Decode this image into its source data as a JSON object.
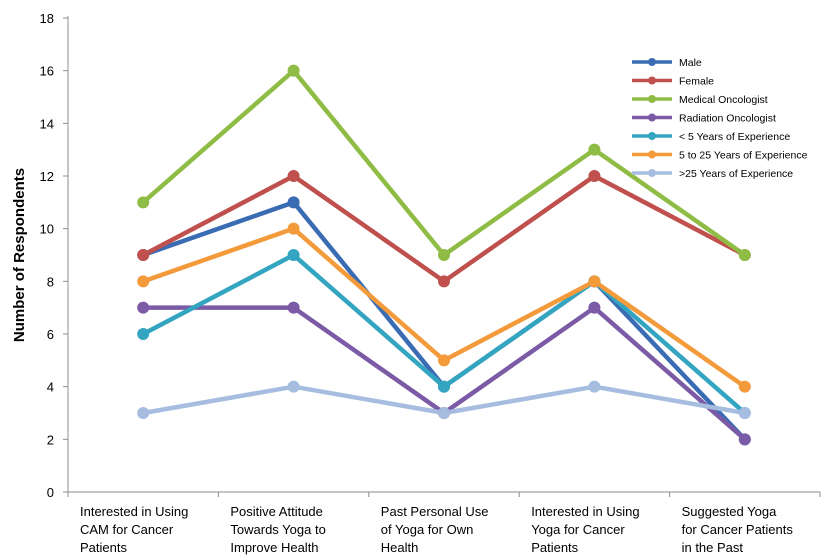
{
  "chart_data": {
    "type": "line",
    "title": "",
    "xlabel": "",
    "ylabel": "Number of Respondents",
    "ylim": [
      0,
      18
    ],
    "yticks": [
      0,
      2,
      4,
      6,
      8,
      10,
      12,
      14,
      16,
      18
    ],
    "grid": false,
    "legend_position": "top-right",
    "categories": [
      [
        "Interested in Using",
        "CAM for Cancer",
        "Patients"
      ],
      [
        "Positive Attitude",
        "Towards Yoga to",
        "Improve Health"
      ],
      [
        "Past Personal Use",
        "of Yoga for Own",
        "Health"
      ],
      [
        "Interested in Using",
        "Yoga for Cancer",
        "Patients"
      ],
      [
        "Suggested Yoga",
        "for Cancer Patients",
        "in the Past"
      ]
    ],
    "series": [
      {
        "name": "Male",
        "color": "#3a6cb4",
        "values": [
          9,
          11,
          4,
          8,
          2
        ]
      },
      {
        "name": "Female",
        "color": "#c0504d",
        "values": [
          9,
          12,
          8,
          12,
          9
        ]
      },
      {
        "name": "Medical Oncologist",
        "color": "#8fbc45",
        "values": [
          11,
          16,
          9,
          13,
          9
        ]
      },
      {
        "name": "Radiation Oncologist",
        "color": "#7b5aa6",
        "values": [
          7,
          7,
          3,
          7,
          2
        ]
      },
      {
        "name": "< 5 Years of Experience",
        "color": "#33a5c0",
        "values": [
          6,
          9,
          4,
          8,
          3
        ]
      },
      {
        "name": "5 to 25 Years of Experience",
        "color": "#f39a3b",
        "values": [
          8,
          10,
          5,
          8,
          4
        ]
      },
      {
        "name": ">25 Years of Experience",
        "color": "#a6bde0",
        "values": [
          3,
          4,
          3,
          4,
          3
        ]
      }
    ]
  }
}
